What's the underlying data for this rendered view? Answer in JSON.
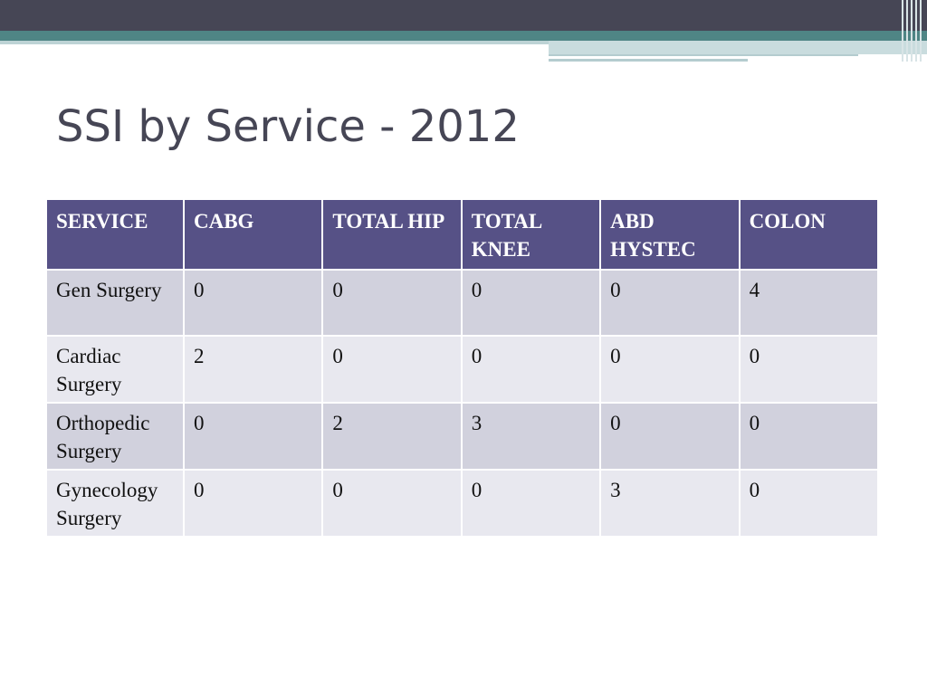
{
  "slide": {
    "title": "SSI by Service - 2012"
  },
  "table": {
    "headers": [
      "SERVICE",
      "CABG",
      "TOTAL HIP",
      "TOTAL KNEE",
      "ABD HYSTEC",
      "COLON"
    ],
    "rows": [
      [
        "Gen Surgery",
        "0",
        "0",
        "0",
        "0",
        "4"
      ],
      [
        "Cardiac Surgery",
        "2",
        "0",
        "0",
        "0",
        "0"
      ],
      [
        "Orthopedic Surgery",
        "0",
        "2",
        "3",
        "0",
        "0"
      ],
      [
        "Gynecology Surgery",
        "0",
        "0",
        "0",
        "3",
        "0"
      ]
    ]
  },
  "colors": {
    "header_bg": "#565186",
    "row_odd_bg": "#d1d1dd",
    "row_even_bg": "#e8e8ef",
    "title_color": "#464655",
    "top_bar": "#464655",
    "accent_teal": "#4f8585"
  }
}
